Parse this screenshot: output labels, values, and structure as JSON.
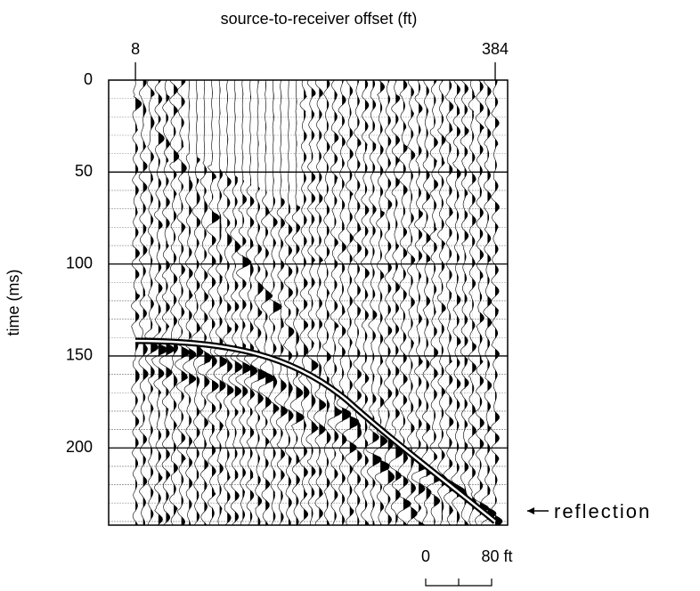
{
  "chart_data": {
    "type": "seismic",
    "title": "source-to-receiver offset (ft)",
    "y_label": "time (ms)",
    "xlim": [
      -20,
      397
    ],
    "xticks": [
      8,
      384
    ],
    "ylim": [
      0,
      242
    ],
    "yticks": [
      0,
      50,
      100,
      150,
      200
    ],
    "y_inverted": true,
    "grid": true,
    "annotation": "reflection",
    "scale_bar": {
      "labels": [
        "0",
        "80 ft"
      ]
    }
  }
}
